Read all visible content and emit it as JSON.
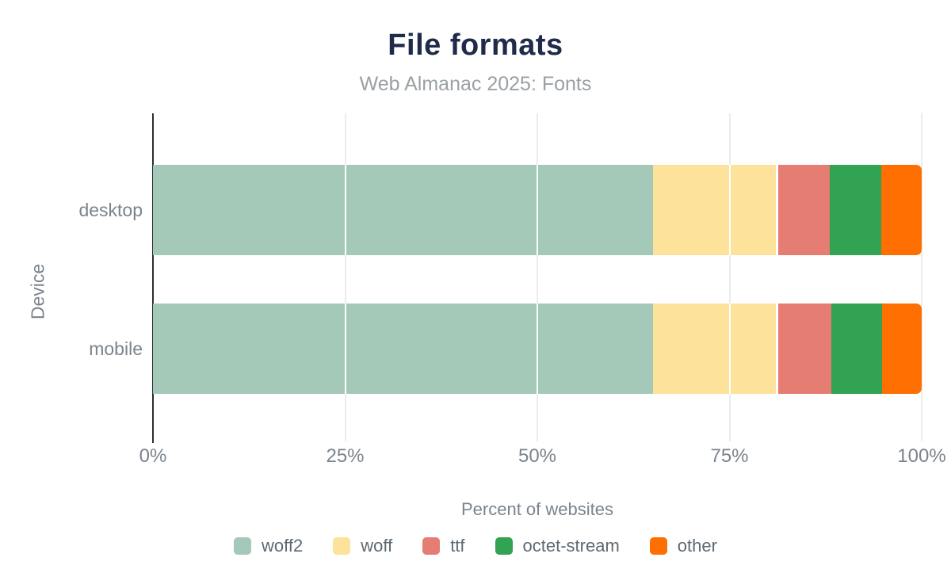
{
  "header": {
    "title": "File formats",
    "subtitle": "Web Almanac 2025: Fonts"
  },
  "chart_data": {
    "type": "bar",
    "orientation": "horizontal",
    "stacked": true,
    "categories": [
      "desktop",
      "mobile"
    ],
    "series": [
      {
        "name": "woff2",
        "color": "#a5c9b8",
        "values": [
          65.3,
          65.3
        ]
      },
      {
        "name": "woff",
        "color": "#fde29b",
        "values": [
          16.0,
          16.0
        ]
      },
      {
        "name": "ttf",
        "color": "#e57d73",
        "values": [
          6.7,
          6.9
        ]
      },
      {
        "name": "octet-stream",
        "color": "#31a352",
        "values": [
          6.7,
          6.6
        ]
      },
      {
        "name": "other",
        "color": "#ff6e00",
        "values": [
          5.3,
          5.2
        ]
      }
    ],
    "title": "File formats",
    "subtitle": "Web Almanac 2025: Fonts",
    "xlabel": "Percent of websites",
    "ylabel": "Device",
    "xlim": [
      0,
      100
    ],
    "xticks": [
      {
        "value": 0,
        "label": "0%"
      },
      {
        "value": 25,
        "label": "25%"
      },
      {
        "value": 50,
        "label": "50%"
      },
      {
        "value": 75,
        "label": "75%"
      },
      {
        "value": 100,
        "label": "100%"
      }
    ],
    "grid": true,
    "legend_position": "bottom"
  },
  "colors": {
    "background": "#ffffff",
    "title_text": "#1f2b49",
    "subtitle_text": "#9aa0a4",
    "axis_text": "#7b838c",
    "legend_text": "#5f6972",
    "grid_line": "#ececec",
    "axis_line": "#2b2e30"
  }
}
